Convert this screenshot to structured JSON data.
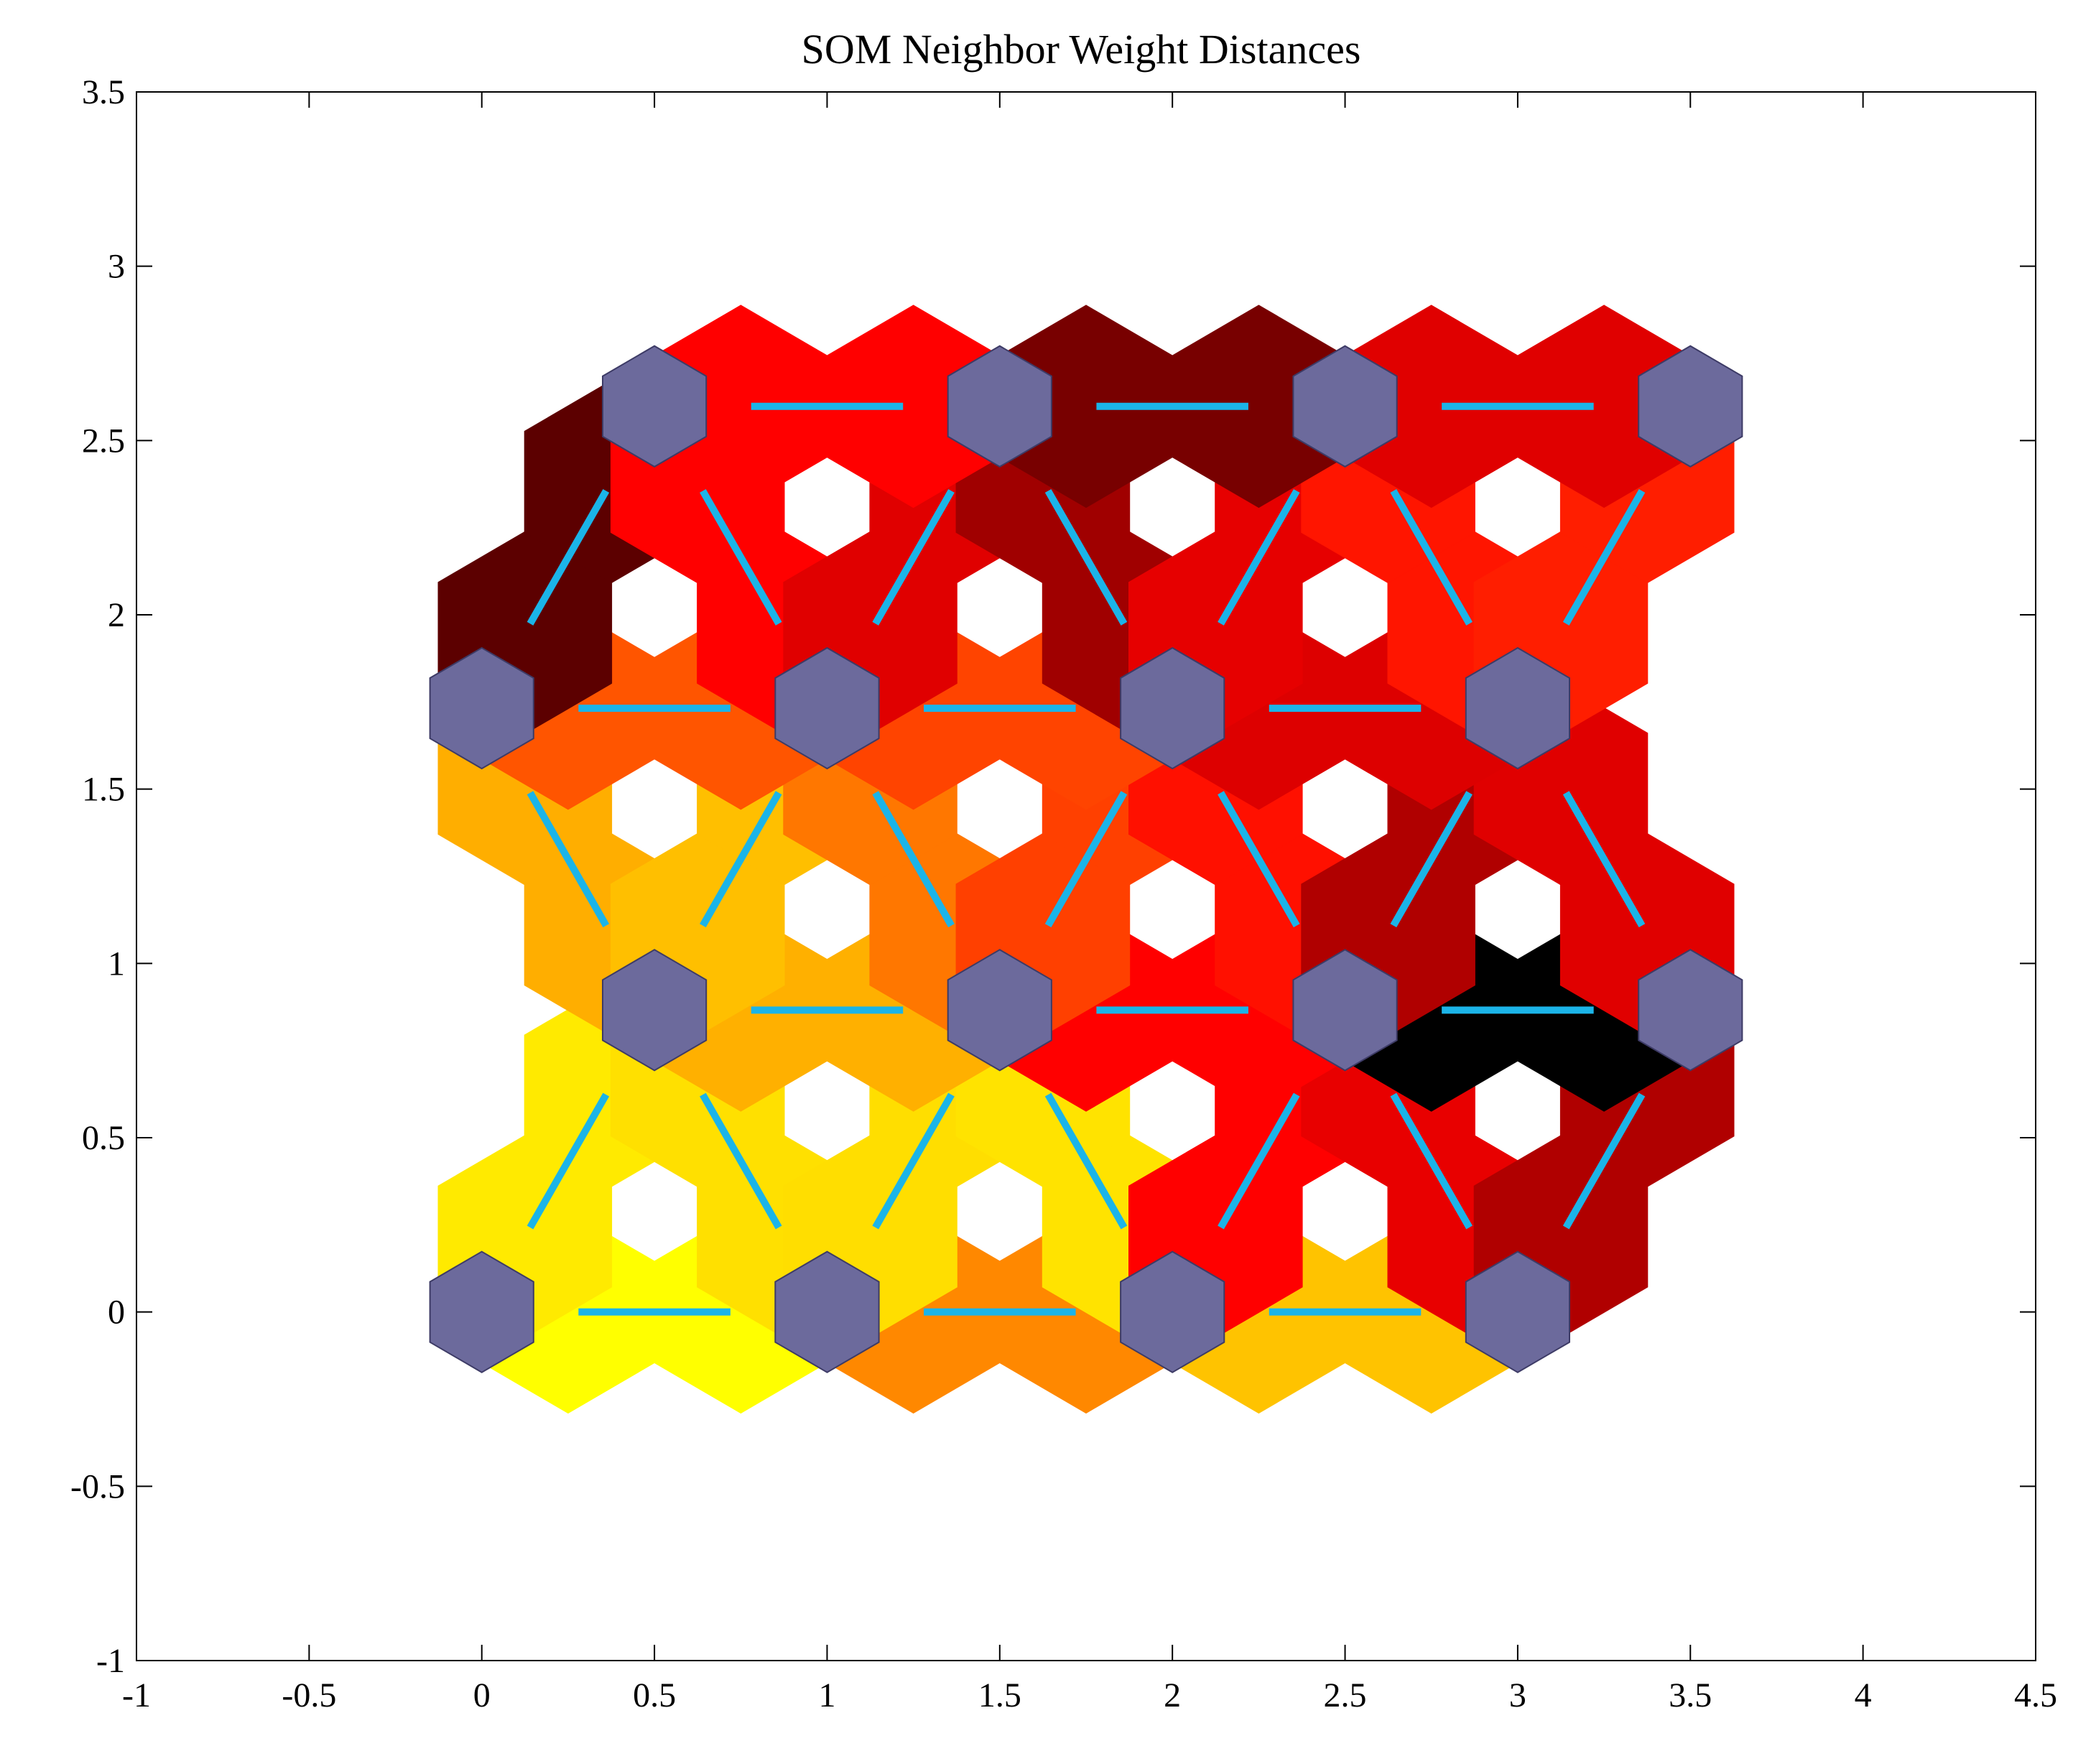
{
  "chart_data": {
    "type": "heatmap",
    "title": "SOM Neighbor Weight Distances",
    "xlabel": "",
    "ylabel": "",
    "xlim": [
      -1,
      4.5
    ],
    "ylim": [
      -1,
      3.5
    ],
    "x_ticks": [
      "-1",
      "-0.5",
      "0",
      "0.5",
      "1",
      "1.5",
      "2",
      "2.5",
      "3",
      "3.5",
      "4",
      "4.5"
    ],
    "y_ticks": [
      "-1",
      "-0.5",
      "0",
      "0.5",
      "1",
      "1.5",
      "2",
      "2.5",
      "3",
      "3.5"
    ],
    "grid": false,
    "colormap": "hot",
    "neuron_color": "#6c6a9c",
    "neuron_edge_color": "#3d3b66",
    "connection_line_color": "#1bb4e8",
    "neurons": [
      {
        "x": 0,
        "y": 0
      },
      {
        "x": 1,
        "y": 0
      },
      {
        "x": 2,
        "y": 0
      },
      {
        "x": 3,
        "y": 0
      },
      {
        "x": 0.5,
        "y": 0.866
      },
      {
        "x": 1.5,
        "y": 0.866
      },
      {
        "x": 2.5,
        "y": 0.866
      },
      {
        "x": 3.5,
        "y": 0.866
      },
      {
        "x": 0,
        "y": 1.732
      },
      {
        "x": 1,
        "y": 1.732
      },
      {
        "x": 2,
        "y": 1.732
      },
      {
        "x": 3,
        "y": 1.732
      },
      {
        "x": 0.5,
        "y": 2.598
      },
      {
        "x": 1.5,
        "y": 2.598
      },
      {
        "x": 2.5,
        "y": 2.598
      },
      {
        "x": 3.5,
        "y": 2.598
      }
    ],
    "connections": [
      {
        "from": 0,
        "to": 1,
        "color": "#ffff00"
      },
      {
        "from": 1,
        "to": 2,
        "color": "#ff8800"
      },
      {
        "from": 2,
        "to": 3,
        "color": "#ffc300"
      },
      {
        "from": 0,
        "to": 4,
        "color": "#ffea00"
      },
      {
        "from": 1,
        "to": 4,
        "color": "#ffe000"
      },
      {
        "from": 1,
        "to": 5,
        "color": "#ffde00"
      },
      {
        "from": 2,
        "to": 5,
        "color": "#ffe300"
      },
      {
        "from": 2,
        "to": 6,
        "color": "#ff0000"
      },
      {
        "from": 3,
        "to": 6,
        "color": "#e80000"
      },
      {
        "from": 3,
        "to": 7,
        "color": "#b00000"
      },
      {
        "from": 4,
        "to": 5,
        "color": "#ffb000"
      },
      {
        "from": 5,
        "to": 6,
        "color": "#ff0000"
      },
      {
        "from": 6,
        "to": 7,
        "color": "#000000"
      },
      {
        "from": 4,
        "to": 8,
        "color": "#ffae00"
      },
      {
        "from": 4,
        "to": 9,
        "color": "#ffbf00"
      },
      {
        "from": 5,
        "to": 9,
        "color": "#ff7700"
      },
      {
        "from": 5,
        "to": 10,
        "color": "#ff4000"
      },
      {
        "from": 6,
        "to": 10,
        "color": "#ff1000"
      },
      {
        "from": 6,
        "to": 11,
        "color": "#b00000"
      },
      {
        "from": 7,
        "to": 11,
        "color": "#e00000"
      },
      {
        "from": 8,
        "to": 9,
        "color": "#ff5500"
      },
      {
        "from": 9,
        "to": 10,
        "color": "#ff4400"
      },
      {
        "from": 10,
        "to": 11,
        "color": "#dd0000"
      },
      {
        "from": 8,
        "to": 12,
        "color": "#5c0000"
      },
      {
        "from": 9,
        "to": 12,
        "color": "#ff0000"
      },
      {
        "from": 9,
        "to": 13,
        "color": "#e00000"
      },
      {
        "from": 10,
        "to": 13,
        "color": "#a00000"
      },
      {
        "from": 10,
        "to": 14,
        "color": "#e60000"
      },
      {
        "from": 11,
        "to": 14,
        "color": "#ff1500"
      },
      {
        "from": 11,
        "to": 15,
        "color": "#ff1e00"
      },
      {
        "from": 12,
        "to": 13,
        "color": "#ff0000"
      },
      {
        "from": 13,
        "to": 14,
        "color": "#780000"
      },
      {
        "from": 14,
        "to": 15,
        "color": "#e00000"
      }
    ]
  }
}
